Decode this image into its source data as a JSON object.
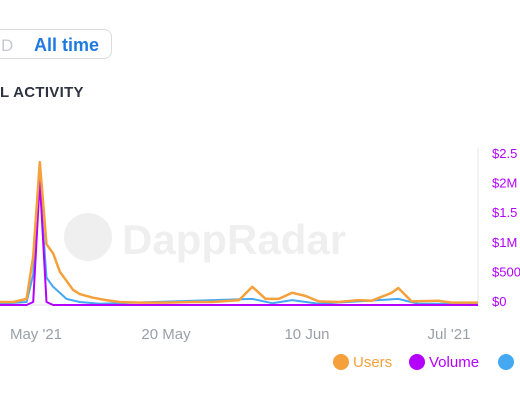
{
  "range_tabs": {
    "partial_label": "D",
    "active_label": "All time"
  },
  "section": {
    "title": "L ACTIVITY"
  },
  "watermark": "DappRadar",
  "colors": {
    "users": "#f5a03b",
    "volume": "#b400ff",
    "third": "#45a8f2"
  },
  "legend": [
    {
      "label": "Users",
      "color": "#f5a03b"
    },
    {
      "label": "Volume",
      "color": "#b400ff"
    },
    {
      "label": "",
      "color": "#45a8f2"
    }
  ],
  "chart_data": {
    "type": "line",
    "x_ticks": [
      "May '21",
      "20 May",
      "10 Jun",
      "Jul '21"
    ],
    "y_right_ticks": [
      "$2.5",
      "$2M",
      "$1.5",
      "$1M",
      "$500",
      "$0"
    ],
    "x_range": [
      "2021-04-25",
      "2021-07-06"
    ],
    "series": [
      {
        "name": "Users",
        "points": [
          [
            "2021-04-25",
            0.05
          ],
          [
            "2021-04-27",
            0.05
          ],
          [
            "2021-04-29",
            0.1
          ],
          [
            "2021-04-30",
            0.8
          ],
          [
            "2021-05-01",
            2.35
          ],
          [
            "2021-05-02",
            1.0
          ],
          [
            "2021-05-03",
            0.85
          ],
          [
            "2021-05-04",
            0.55
          ],
          [
            "2021-05-05",
            0.4
          ],
          [
            "2021-05-06",
            0.25
          ],
          [
            "2021-05-07",
            0.18
          ],
          [
            "2021-05-09",
            0.12
          ],
          [
            "2021-05-11",
            0.08
          ],
          [
            "2021-05-13",
            0.05
          ],
          [
            "2021-05-16",
            0.04
          ],
          [
            "2021-05-20",
            0.04
          ],
          [
            "2021-05-24",
            0.05
          ],
          [
            "2021-05-27",
            0.05
          ],
          [
            "2021-05-31",
            0.08
          ],
          [
            "2021-06-02",
            0.3
          ],
          [
            "2021-06-03",
            0.2
          ],
          [
            "2021-06-04",
            0.1
          ],
          [
            "2021-06-06",
            0.1
          ],
          [
            "2021-06-08",
            0.2
          ],
          [
            "2021-06-10",
            0.15
          ],
          [
            "2021-06-12",
            0.06
          ],
          [
            "2021-06-15",
            0.05
          ],
          [
            "2021-06-18",
            0.08
          ],
          [
            "2021-06-20",
            0.07
          ],
          [
            "2021-06-23",
            0.2
          ],
          [
            "2021-06-24",
            0.28
          ],
          [
            "2021-06-26",
            0.06
          ],
          [
            "2021-06-30",
            0.07
          ],
          [
            "2021-07-02",
            0.04
          ],
          [
            "2021-07-06",
            0.04
          ]
        ]
      },
      {
        "name": "Volume",
        "points": [
          [
            "2021-04-25",
            0.0
          ],
          [
            "2021-04-29",
            0.0
          ],
          [
            "2021-04-30",
            0.05
          ],
          [
            "2021-05-01",
            2.05
          ],
          [
            "2021-05-02",
            0.05
          ],
          [
            "2021-05-03",
            0.0
          ],
          [
            "2021-07-06",
            0.0
          ]
        ]
      },
      {
        "name": "",
        "points": [
          [
            "2021-04-25",
            0.02
          ],
          [
            "2021-04-29",
            0.05
          ],
          [
            "2021-04-30",
            0.5
          ],
          [
            "2021-05-01",
            2.0
          ],
          [
            "2021-05-02",
            0.45
          ],
          [
            "2021-05-03",
            0.3
          ],
          [
            "2021-05-04",
            0.2
          ],
          [
            "2021-05-05",
            0.1
          ],
          [
            "2021-05-07",
            0.05
          ],
          [
            "2021-05-10",
            0.02
          ],
          [
            "2021-06-02",
            0.1
          ],
          [
            "2021-06-05",
            0.03
          ],
          [
            "2021-06-08",
            0.08
          ],
          [
            "2021-06-12",
            0.02
          ],
          [
            "2021-06-24",
            0.1
          ],
          [
            "2021-06-27",
            0.02
          ],
          [
            "2021-07-06",
            0.02
          ]
        ]
      }
    ],
    "y_range": [
      0,
      2.5
    ]
  }
}
